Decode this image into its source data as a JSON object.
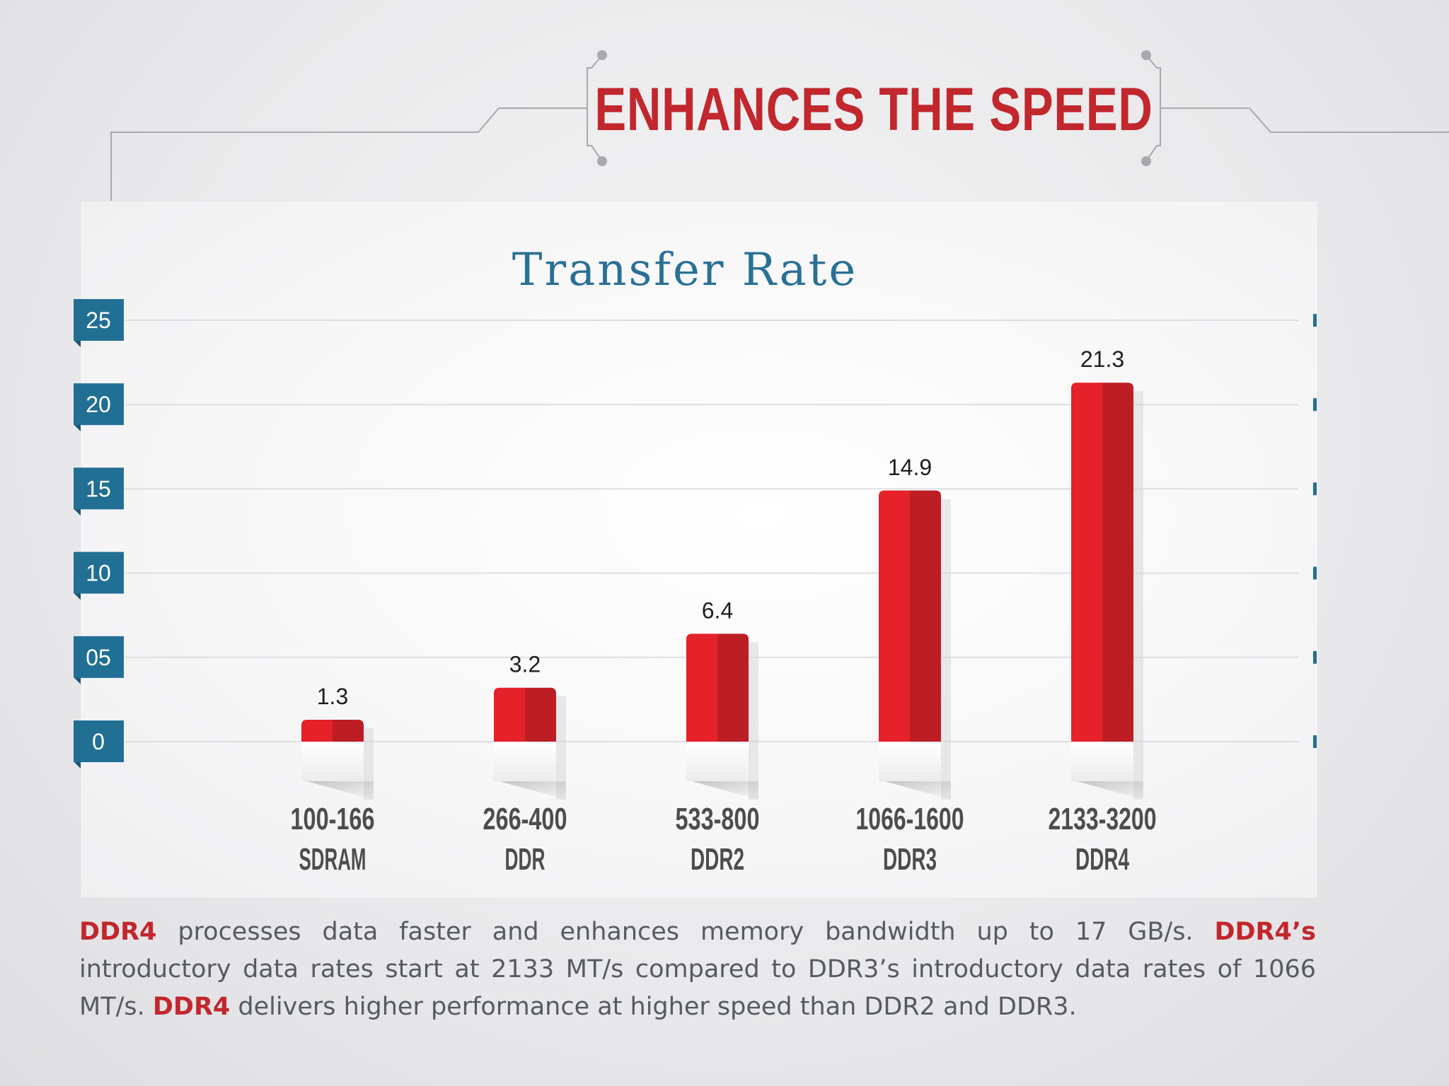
{
  "header": {
    "title": "ENHANCES THE SPEED"
  },
  "colors": {
    "accent_red": "#c1272d",
    "bar_light": "#e52129",
    "bar_dark": "#bd1e26",
    "axis_blue": "#226f94",
    "title_blue": "#2a7096",
    "label_gray": "#4d4d4d"
  },
  "chart_data": {
    "type": "bar",
    "title": "Transfer Rate",
    "xlabel": "",
    "ylabel": "",
    "ylim": [
      0,
      25
    ],
    "y_ticks": [
      "0",
      "05",
      "10",
      "15",
      "20",
      "25"
    ],
    "y_tick_values": [
      0,
      5,
      10,
      15,
      20,
      25
    ],
    "grid": true,
    "legend": "none",
    "categories": [
      {
        "range": "100-166",
        "name": "SDRAM"
      },
      {
        "range": "266-400",
        "name": "DDR"
      },
      {
        "range": "533-800",
        "name": "DDR2"
      },
      {
        "range": "1066-1600",
        "name": "DDR3"
      },
      {
        "range": "2133-3200",
        "name": "DDR4"
      }
    ],
    "values": [
      1.3,
      3.2,
      6.4,
      14.9,
      21.3
    ],
    "value_labels": [
      "1.3",
      "3.2",
      "6.4",
      "14.9",
      "21.3"
    ]
  },
  "description": {
    "p1_hl": "DDR4",
    "p1_text": " processes data faster and enhances memory bandwidth up to 17 GB/s. ",
    "p2_hl": "DDR4’s",
    "p2_text": " introductory data rates start at 2133 MT/s compared to DDR3’s introductory data rates of 1066 MT/s. ",
    "p3_hl": "DDR4",
    "p3_text": " delivers higher performance at higher speed than DDR2 and DDR3."
  }
}
